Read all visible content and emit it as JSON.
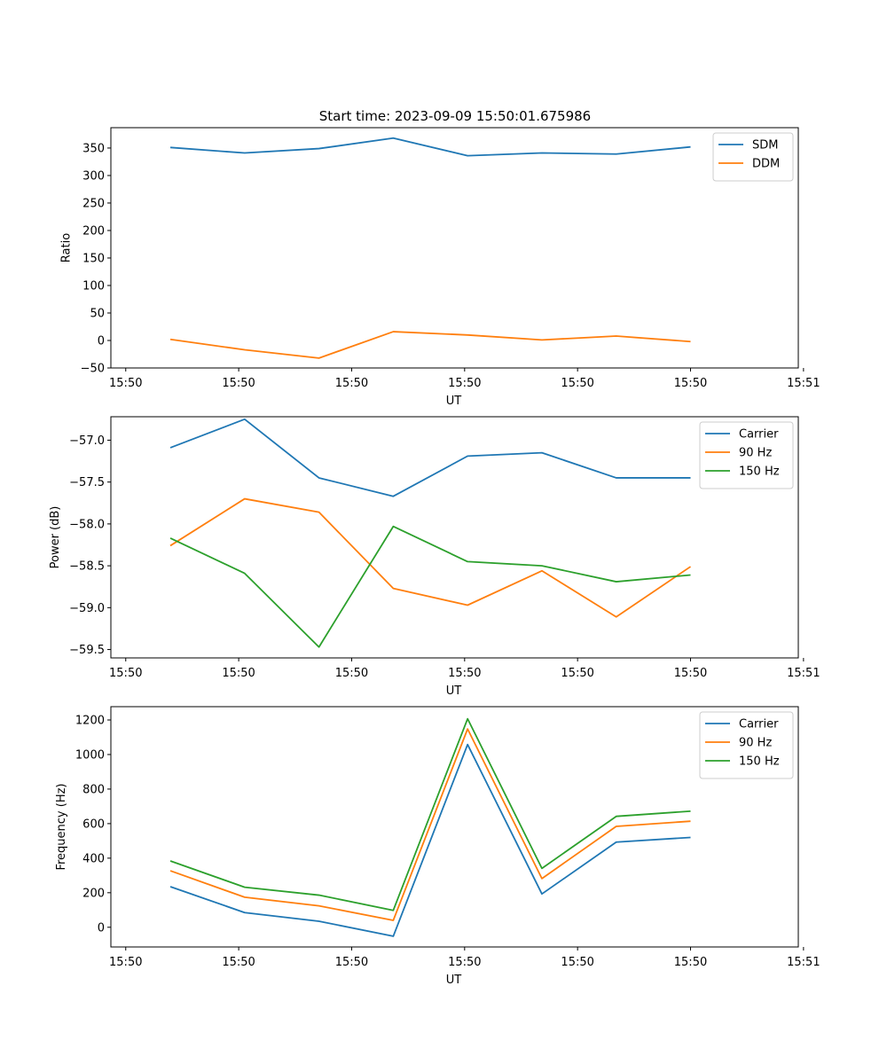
{
  "figure_title": "Start time: 2023-09-09 15:50:01.675986",
  "chart_data": [
    {
      "type": "line",
      "title": "Start time: 2023-09-09 15:50:01.675986",
      "xlabel": "UT",
      "ylabel": "Ratio",
      "x": [
        1,
        2,
        3,
        4,
        5,
        6,
        7,
        8
      ],
      "xlim": [
        0.2,
        9.45
      ],
      "x_ticks": [
        0.4,
        1.92,
        3.44,
        4.96,
        6.48,
        8.0,
        9.52
      ],
      "x_tick_labels": [
        "15:50",
        "15:50",
        "15:50",
        "15:50",
        "15:50",
        "15:50",
        "15:51"
      ],
      "ylim": [
        -50,
        387
      ],
      "y_ticks": [
        -50,
        0,
        50,
        100,
        150,
        200,
        250,
        300,
        350
      ],
      "y_tick_labels": [
        "−50",
        "0",
        "50",
        "100",
        "150",
        "200",
        "250",
        "300",
        "350"
      ],
      "legend_position": "top-right",
      "series": [
        {
          "name": "SDM",
          "color": "#1f77b4",
          "values": [
            351,
            341,
            349,
            368,
            336,
            341,
            339,
            352
          ]
        },
        {
          "name": "DDM",
          "color": "#ff7f0e",
          "values": [
            2,
            -17,
            -32,
            16,
            10,
            1,
            8,
            -2
          ]
        }
      ]
    },
    {
      "type": "line",
      "title": "",
      "xlabel": "UT",
      "ylabel": "Power (dB)",
      "x": [
        1,
        2,
        3,
        4,
        5,
        6,
        7,
        8
      ],
      "xlim": [
        0.2,
        9.45
      ],
      "x_ticks": [
        0.4,
        1.92,
        3.44,
        4.96,
        6.48,
        8.0,
        9.52
      ],
      "x_tick_labels": [
        "15:50",
        "15:50",
        "15:50",
        "15:50",
        "15:50",
        "15:50",
        "15:51"
      ],
      "ylim": [
        -59.6,
        -56.72
      ],
      "y_ticks": [
        -59.5,
        -59.0,
        -58.5,
        -58.0,
        -57.5,
        -57.0
      ],
      "y_tick_labels": [
        "−59.5",
        "−59.0",
        "−58.5",
        "−58.0",
        "−57.5",
        "−57.0"
      ],
      "legend_position": "top-right",
      "series": [
        {
          "name": "Carrier",
          "color": "#1f77b4",
          "values": [
            -57.09,
            -56.75,
            -57.45,
            -57.67,
            -57.19,
            -57.15,
            -57.45,
            -57.45
          ]
        },
        {
          "name": "90 Hz",
          "color": "#ff7f0e",
          "values": [
            -58.26,
            -57.7,
            -57.86,
            -58.77,
            -58.97,
            -58.56,
            -59.11,
            -58.51
          ]
        },
        {
          "name": "150 Hz",
          "color": "#2ca02c",
          "values": [
            -58.17,
            -58.59,
            -59.47,
            -58.03,
            -58.45,
            -58.5,
            -58.69,
            -58.61
          ]
        }
      ]
    },
    {
      "type": "line",
      "title": "",
      "xlabel": "UT",
      "ylabel": "Frequency (Hz)",
      "x": [
        1,
        2,
        3,
        4,
        5,
        6,
        7,
        8
      ],
      "xlim": [
        0.2,
        9.45
      ],
      "x_ticks": [
        0.4,
        1.92,
        3.44,
        4.96,
        6.48,
        8.0,
        9.52
      ],
      "x_tick_labels": [
        "15:50",
        "15:50",
        "15:50",
        "15:50",
        "15:50",
        "15:50",
        "15:51"
      ],
      "ylim": [
        -114,
        1277
      ],
      "y_ticks": [
        0,
        200,
        400,
        600,
        800,
        1000,
        1200
      ],
      "y_tick_labels": [
        "0",
        "200",
        "400",
        "600",
        "800",
        "1000",
        "1200"
      ],
      "legend_position": "top-right",
      "series": [
        {
          "name": "Carrier",
          "color": "#1f77b4",
          "values": [
            235,
            85,
            35,
            -52,
            1058,
            193,
            493,
            520
          ]
        },
        {
          "name": "90 Hz",
          "color": "#ff7f0e",
          "values": [
            327,
            174,
            124,
            40,
            1148,
            282,
            584,
            614
          ]
        },
        {
          "name": "150 Hz",
          "color": "#2ca02c",
          "values": [
            384,
            232,
            186,
            98,
            1207,
            341,
            642,
            672
          ]
        }
      ]
    }
  ]
}
